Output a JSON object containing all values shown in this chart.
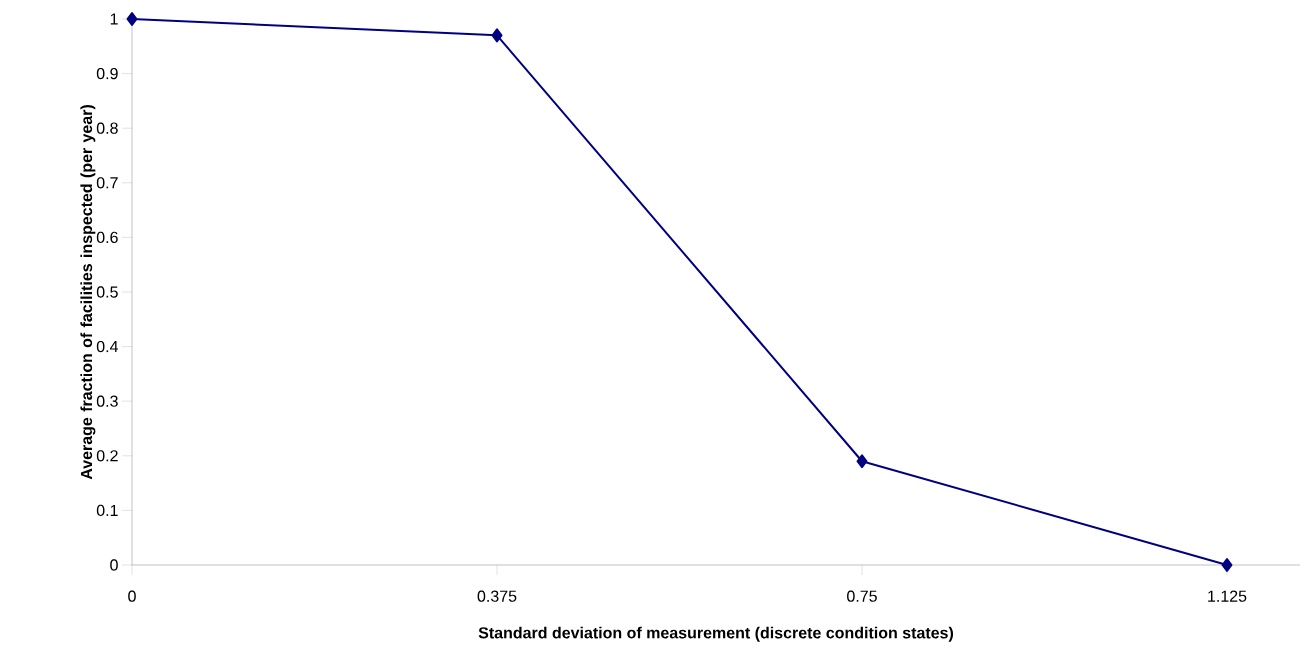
{
  "chart_data": {
    "type": "line",
    "xlabel": "Standard deviation of measurement (discrete condition states)",
    "ylabel": "Average fraction of facilities inspected (per year)",
    "x": [
      0,
      0.375,
      0.75,
      1.125
    ],
    "series": [
      {
        "color": "#000080",
        "values": [
          1,
          0.97,
          0.19,
          0
        ]
      }
    ],
    "xlim": [
      0,
      1.2
    ],
    "ylim": [
      0,
      1
    ],
    "xticks": [
      0,
      0.375,
      0.75,
      1.125
    ],
    "yticks": [
      0,
      0.1,
      0.2,
      0.3,
      0.4,
      0.5,
      0.6,
      0.7,
      0.8,
      0.9,
      1
    ],
    "grid": false,
    "marker": "diamond",
    "line_style": "solid"
  }
}
